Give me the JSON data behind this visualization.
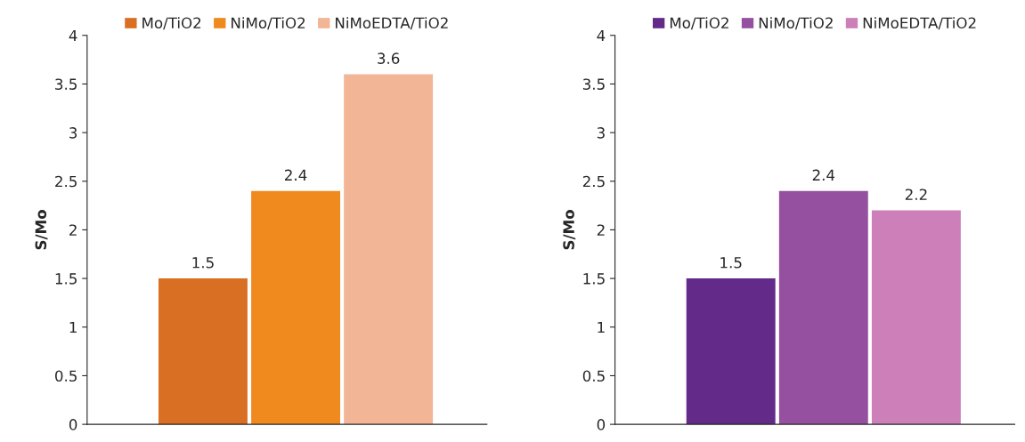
{
  "chart_data": [
    {
      "type": "bar",
      "ylabel": "S/Mo",
      "categories": [
        null
      ],
      "series": [
        {
          "name": "Mo/TiO2",
          "color": "#d96f22",
          "values": [
            1.5
          ]
        },
        {
          "name": "NiMo/TiO2",
          "color": "#f08a1e",
          "values": [
            2.4
          ]
        },
        {
          "name": "NiMoEDTA/TiO2",
          "color": "#f2b596",
          "values": [
            3.6
          ]
        }
      ],
      "ylim": [
        0,
        4
      ],
      "yticks": [
        0,
        0.5,
        1,
        1.5,
        2,
        2.5,
        3,
        3.5,
        4
      ],
      "data_labels": true,
      "legend": "top",
      "grid": false
    },
    {
      "type": "bar",
      "ylabel": "S/Mo",
      "categories": [
        null
      ],
      "series": [
        {
          "name": "Mo/TiO2",
          "color": "#632a8a",
          "values": [
            1.5
          ]
        },
        {
          "name": "NiMo/TiO2",
          "color": "#95519f",
          "values": [
            2.4
          ]
        },
        {
          "name": "NiMoEDTA/TiO2",
          "color": "#cc7fb8",
          "values": [
            2.2
          ]
        }
      ],
      "ylim": [
        0,
        4
      ],
      "yticks": [
        0,
        0.5,
        1,
        1.5,
        2,
        2.5,
        3,
        3.5,
        4
      ],
      "data_labels": true,
      "legend": "top",
      "grid": false
    }
  ]
}
